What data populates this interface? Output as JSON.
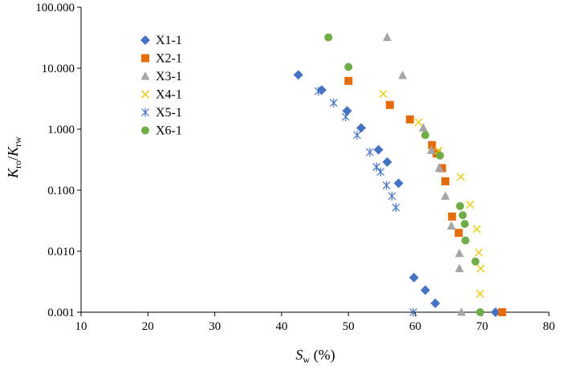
{
  "chart_data": {
    "type": "scatter",
    "title": "",
    "xlabel": {
      "main": "S",
      "sub": "w",
      "suffix": " (%)"
    },
    "ylabel": {
      "a": "K",
      "a_sub": "ro",
      "sep": "/",
      "b": "K",
      "b_sub": "rw"
    },
    "xlim": [
      10,
      80
    ],
    "ylim": [
      0.001,
      100
    ],
    "yscale": "log",
    "x_ticks": [
      "10",
      "20",
      "30",
      "40",
      "50",
      "60",
      "70",
      "80"
    ],
    "y_ticks": [
      "0.001",
      "0.010",
      "0.100",
      "1.000",
      "10.000",
      "100.000"
    ],
    "grid": false,
    "legend_position": "upper-left",
    "series": [
      {
        "name": "X1-1",
        "marker": "diamond",
        "color": "#4472C4",
        "points": [
          [
            42.5,
            7.8
          ],
          [
            46,
            4.4
          ],
          [
            49.8,
            2.0
          ],
          [
            51.9,
            1.05
          ],
          [
            54.5,
            0.46
          ],
          [
            55.8,
            0.29
          ],
          [
            57.5,
            0.13
          ],
          [
            59.8,
            0.0037
          ],
          [
            61.5,
            0.0023
          ],
          [
            63,
            0.0014
          ],
          [
            72,
            0.001
          ]
        ]
      },
      {
        "name": "X2-1",
        "marker": "square",
        "color": "#E46C0A",
        "points": [
          [
            50,
            6.2
          ],
          [
            56.2,
            2.5
          ],
          [
            59.2,
            1.45
          ],
          [
            62.5,
            0.55
          ],
          [
            63.2,
            0.4
          ],
          [
            64,
            0.23
          ],
          [
            64.5,
            0.14
          ],
          [
            65.5,
            0.037
          ],
          [
            66.5,
            0.02
          ],
          [
            73,
            0.001
          ]
        ]
      },
      {
        "name": "X3-1",
        "marker": "triangle",
        "color": "#A5A5A5",
        "points": [
          [
            55.8,
            32
          ],
          [
            58.1,
            7.6
          ],
          [
            61.2,
            1.05
          ],
          [
            62.4,
            0.45
          ],
          [
            63.6,
            0.23
          ],
          [
            64.5,
            0.08
          ],
          [
            65.4,
            0.026
          ],
          [
            66.6,
            0.0092
          ],
          [
            66.6,
            0.0052
          ],
          [
            66.9,
            0.001
          ]
        ]
      },
      {
        "name": "X4-1",
        "marker": "x",
        "color": "#E6C800",
        "points": [
          [
            55.2,
            3.8
          ],
          [
            60.5,
            1.3
          ],
          [
            63.5,
            0.45
          ],
          [
            66.8,
            0.165
          ],
          [
            68.2,
            0.058
          ],
          [
            69.2,
            0.023
          ],
          [
            69.5,
            0.0095
          ],
          [
            69.8,
            0.0052
          ],
          [
            69.7,
            0.002
          ]
        ]
      },
      {
        "name": "X5-1",
        "marker": "asterisk",
        "color": "#4472C4",
        "points": [
          [
            45.5,
            4.2
          ],
          [
            47.8,
            2.7
          ],
          [
            49.6,
            1.6
          ],
          [
            51.3,
            0.8
          ],
          [
            53.2,
            0.42
          ],
          [
            54.2,
            0.24
          ],
          [
            54.8,
            0.2
          ],
          [
            55.7,
            0.12
          ],
          [
            56.5,
            0.08
          ],
          [
            57.1,
            0.052
          ],
          [
            59.7,
            0.001
          ]
        ]
      },
      {
        "name": "X6-1",
        "marker": "circle",
        "color": "#70AD47",
        "points": [
          [
            47,
            32
          ],
          [
            50,
            10.5
          ],
          [
            61.5,
            0.8
          ],
          [
            63.7,
            0.37
          ],
          [
            66.7,
            0.055
          ],
          [
            67.1,
            0.039
          ],
          [
            67.4,
            0.028
          ],
          [
            67.5,
            0.015
          ],
          [
            69,
            0.0068
          ],
          [
            69.7,
            0.001
          ]
        ]
      }
    ]
  }
}
